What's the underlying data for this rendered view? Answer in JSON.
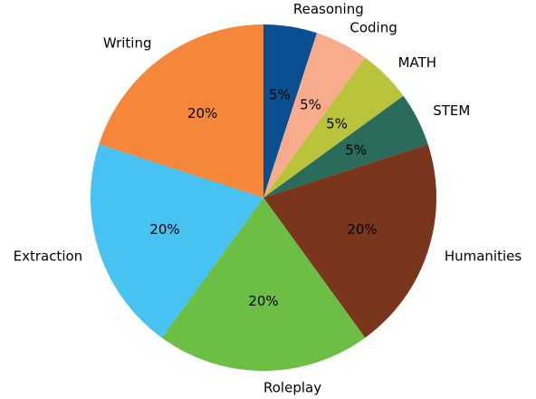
{
  "chart_data": {
    "type": "pie",
    "categories": [
      "Reasoning",
      "Coding",
      "MATH",
      "STEM",
      "Humanities",
      "Roleplay",
      "Extraction",
      "Writing"
    ],
    "values": [
      5,
      5,
      5,
      5,
      20,
      20,
      20,
      20
    ],
    "value_labels": [
      "5%",
      "5%",
      "5%",
      "5%",
      "20%",
      "20%",
      "20%",
      "20%"
    ],
    "colors": [
      "#0a4f8f",
      "#f8ac8c",
      "#b9c43c",
      "#2a6b5c",
      "#7a361d",
      "#6cbe45",
      "#48c2f0",
      "#f5873b"
    ]
  }
}
